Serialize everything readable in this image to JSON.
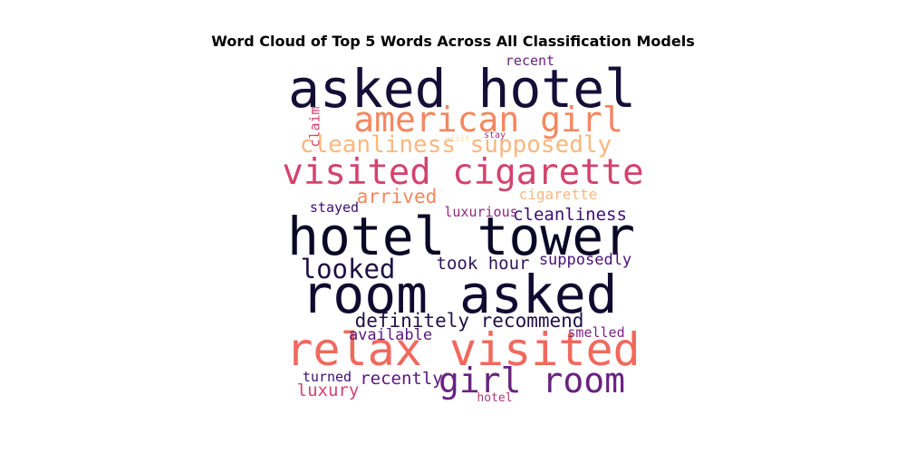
{
  "chart_data": {
    "type": "wordcloud",
    "title": "Word Cloud of Top 5 Words Across All Classification Models",
    "colormap": "magma",
    "words": [
      {
        "text": "asked hotel",
        "weight": 1.0,
        "color": "#150e37",
        "rotate": 0
      },
      {
        "text": "hotel tower",
        "weight": 1.0,
        "color": "#0b0826",
        "rotate": 0
      },
      {
        "text": "room asked",
        "weight": 1.0,
        "color": "#110a30",
        "rotate": 0
      },
      {
        "text": "relax visited",
        "weight": 0.86,
        "color": "#f1695d",
        "rotate": 0
      },
      {
        "text": "visited cigarette",
        "weight": 0.68,
        "color": "#d3436e",
        "rotate": 0
      },
      {
        "text": "american girl",
        "weight": 0.66,
        "color": "#f4875f",
        "rotate": 0
      },
      {
        "text": "girl room",
        "weight": 0.66,
        "color": "#6a2181",
        "rotate": 0
      },
      {
        "text": "looked",
        "weight": 0.5,
        "color": "#1c1044",
        "rotate": 0
      },
      {
        "text": "cleanliness supposedly",
        "weight": 0.44,
        "color": "#fbb77d",
        "rotate": 0
      },
      {
        "text": "definitely recommend",
        "weight": 0.37,
        "color": "#1e1146",
        "rotate": 0
      },
      {
        "text": "arrived",
        "weight": 0.37,
        "color": "#f4875f",
        "rotate": 0
      },
      {
        "text": "took hour",
        "weight": 0.33,
        "color": "#2e1358",
        "rotate": 0
      },
      {
        "text": "cleanliness",
        "weight": 0.33,
        "color": "#3b0f70",
        "rotate": 0
      },
      {
        "text": "recently",
        "weight": 0.33,
        "color": "#5a167e",
        "rotate": 0
      },
      {
        "text": "luxury",
        "weight": 0.33,
        "color": "#d3436e",
        "rotate": 0
      },
      {
        "text": "supposedly",
        "weight": 0.3,
        "color": "#4a1078",
        "rotate": 0
      },
      {
        "text": "available",
        "weight": 0.3,
        "color": "#5a167e",
        "rotate": 0
      },
      {
        "text": "cigarette",
        "weight": 0.28,
        "color": "#fbb77d",
        "rotate": 0
      },
      {
        "text": "luxurious",
        "weight": 0.26,
        "color": "#8c2981",
        "rotate": 0
      },
      {
        "text": "stayed",
        "weight": 0.26,
        "color": "#3b0f70",
        "rotate": 0
      },
      {
        "text": "smelled",
        "weight": 0.26,
        "color": "#7b2382",
        "rotate": 0
      },
      {
        "text": "turned",
        "weight": 0.26,
        "color": "#3b0f70",
        "rotate": 0
      },
      {
        "text": "recent",
        "weight": 0.26,
        "color": "#6a2181",
        "rotate": 0
      },
      {
        "text": "claim",
        "weight": 0.26,
        "color": "#d3436e",
        "rotate": 90
      },
      {
        "text": "hotel",
        "weight": 0.22,
        "color": "#b5367a",
        "rotate": 0
      },
      {
        "text": "stay",
        "weight": 0.17,
        "color": "#a3307e",
        "rotate": 0
      },
      {
        "text": "visit",
        "weight": 0.15,
        "color": "#fcd99b",
        "rotate": 0
      }
    ]
  }
}
